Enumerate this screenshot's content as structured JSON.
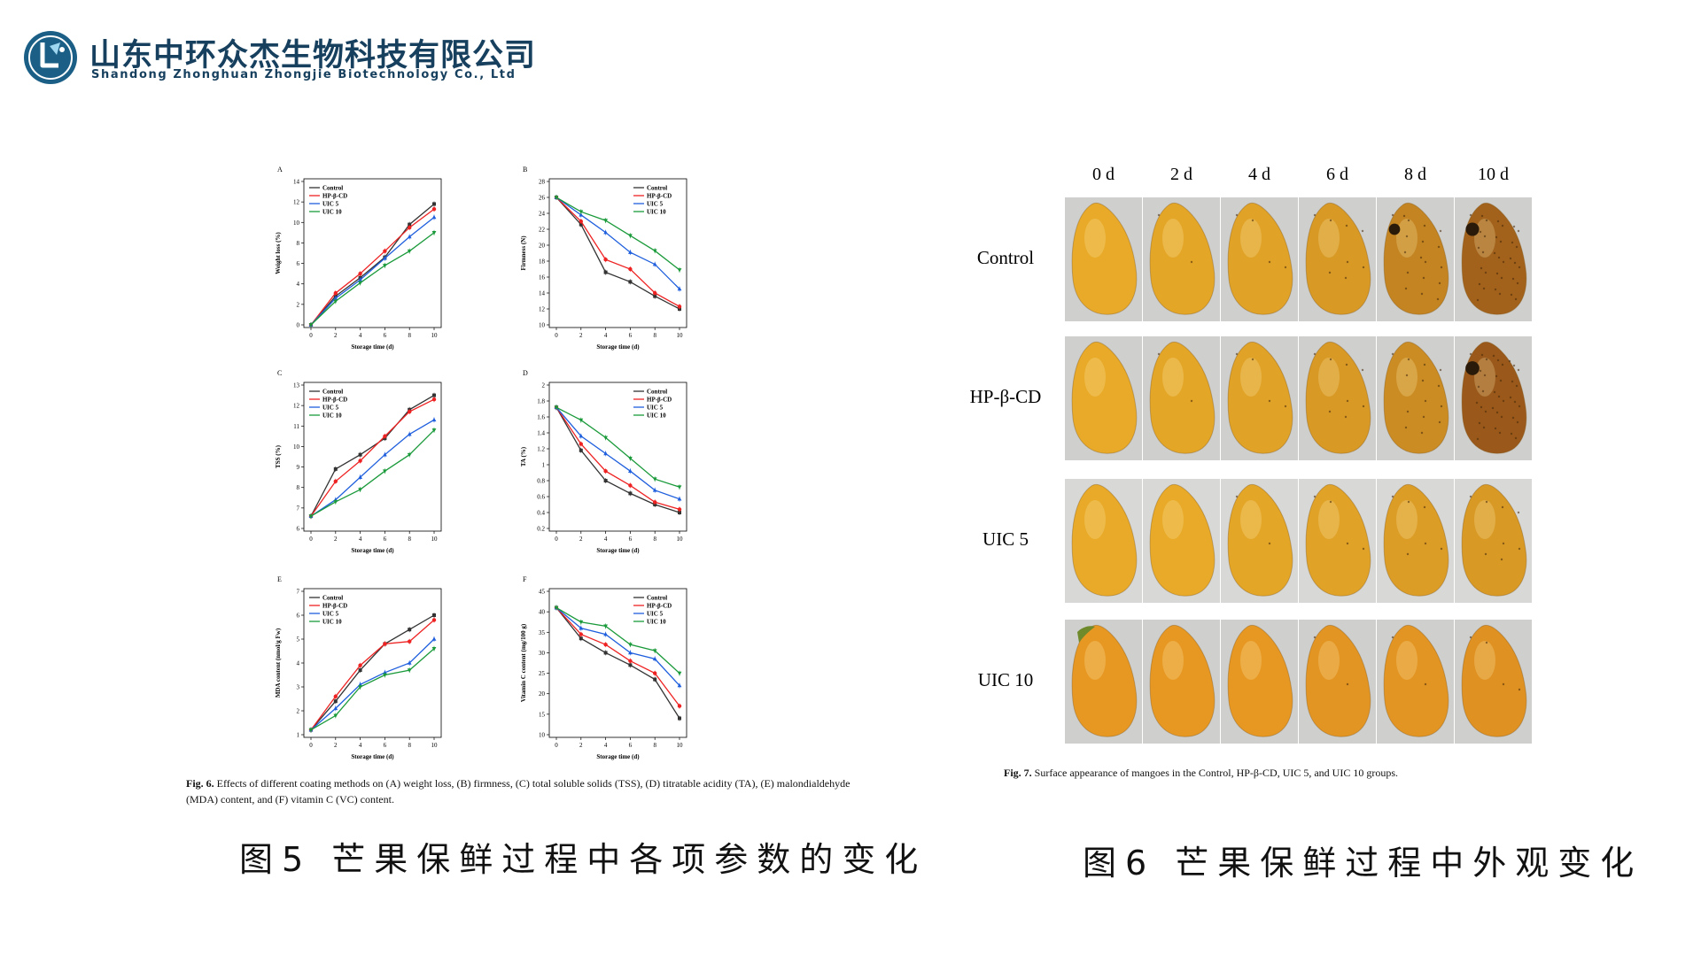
{
  "header": {
    "company_cn": "山东中环众杰生物科技有限公司",
    "company_en": "Shandong Zhonghuan Zhongjie Biotechnology Co., Ltd",
    "logo_icon": "flask-leaf-icon",
    "logo_color": "#1b5f86"
  },
  "colors": {
    "Control": "#333333",
    "HP-β-CD": "#ee2222",
    "UIC 5": "#1f5fdd",
    "UIC 10": "#1a9a3a"
  },
  "chart_data": [
    {
      "panel": "A",
      "type": "line",
      "xlabel": "Storage time (d)",
      "ylabel": "Weight loss (%)",
      "x": [
        0,
        2,
        4,
        6,
        8,
        10
      ],
      "ylim": [
        0,
        14
      ],
      "yticks": [
        0,
        2,
        4,
        6,
        8,
        10,
        12,
        14
      ],
      "legend": "top-left",
      "series": [
        {
          "name": "Control",
          "values": [
            0,
            2.8,
            4.6,
            6.6,
            9.8,
            11.8
          ]
        },
        {
          "name": "HP-β-CD",
          "values": [
            0,
            3.1,
            5.0,
            7.2,
            9.5,
            11.3
          ]
        },
        {
          "name": "UIC 5",
          "values": [
            0,
            2.6,
            4.4,
            6.5,
            8.6,
            10.5
          ]
        },
        {
          "name": "UIC 10",
          "values": [
            0,
            2.3,
            4.1,
            5.8,
            7.2,
            9.0
          ]
        }
      ]
    },
    {
      "panel": "B",
      "type": "line",
      "xlabel": "Storage time (d)",
      "ylabel": "Firmness (N)",
      "x": [
        0,
        2,
        4,
        6,
        8,
        10
      ],
      "ylim": [
        10,
        28
      ],
      "yticks": [
        10,
        12,
        14,
        16,
        18,
        20,
        22,
        24,
        26,
        28
      ],
      "legend": "top-right",
      "series": [
        {
          "name": "Control",
          "values": [
            26,
            22.6,
            16.6,
            15.4,
            13.6,
            12.0
          ]
        },
        {
          "name": "HP-β-CD",
          "values": [
            26,
            23.0,
            18.2,
            17.0,
            14.0,
            12.3
          ]
        },
        {
          "name": "UIC 5",
          "values": [
            26,
            23.8,
            21.6,
            19.1,
            17.6,
            14.5
          ]
        },
        {
          "name": "UIC 10",
          "values": [
            26,
            24.2,
            23.1,
            21.2,
            19.3,
            16.9
          ]
        }
      ]
    },
    {
      "panel": "C",
      "type": "line",
      "xlabel": "Storage time (d)",
      "ylabel": "TSS (%)",
      "x": [
        0,
        2,
        4,
        6,
        8,
        10
      ],
      "ylim": [
        6,
        13
      ],
      "yticks": [
        6,
        7,
        8,
        9,
        10,
        11,
        12,
        13
      ],
      "legend": "top-left",
      "series": [
        {
          "name": "Control",
          "values": [
            6.6,
            8.9,
            9.6,
            10.4,
            11.8,
            12.5
          ]
        },
        {
          "name": "HP-β-CD",
          "values": [
            6.6,
            8.3,
            9.3,
            10.5,
            11.7,
            12.3
          ]
        },
        {
          "name": "UIC 5",
          "values": [
            6.6,
            7.4,
            8.5,
            9.6,
            10.6,
            11.3
          ]
        },
        {
          "name": "UIC 10",
          "values": [
            6.6,
            7.3,
            7.9,
            8.8,
            9.6,
            10.8
          ]
        }
      ]
    },
    {
      "panel": "D",
      "type": "line",
      "xlabel": "Storage time (d)",
      "ylabel": "TA (%)",
      "x": [
        0,
        2,
        4,
        6,
        8,
        10
      ],
      "ylim": [
        0.2,
        2.0
      ],
      "yticks": [
        0.2,
        0.4,
        0.6,
        0.8,
        1.0,
        1.2,
        1.4,
        1.6,
        1.8,
        2.0
      ],
      "legend": "top-right",
      "series": [
        {
          "name": "Control",
          "values": [
            1.72,
            1.18,
            0.8,
            0.64,
            0.5,
            0.4
          ]
        },
        {
          "name": "HP-β-CD",
          "values": [
            1.72,
            1.26,
            0.92,
            0.74,
            0.53,
            0.44
          ]
        },
        {
          "name": "UIC 5",
          "values": [
            1.72,
            1.36,
            1.14,
            0.92,
            0.68,
            0.57
          ]
        },
        {
          "name": "UIC 10",
          "values": [
            1.72,
            1.56,
            1.34,
            1.08,
            0.82,
            0.72
          ]
        }
      ]
    },
    {
      "panel": "E",
      "type": "line",
      "xlabel": "Storage time (d)",
      "ylabel": "MDA content (nmol/g Fw)",
      "x": [
        0,
        2,
        4,
        6,
        8,
        10
      ],
      "ylim": [
        1,
        7
      ],
      "yticks": [
        1,
        2,
        3,
        4,
        5,
        6,
        7
      ],
      "legend": "top-left",
      "series": [
        {
          "name": "Control",
          "values": [
            1.2,
            2.4,
            3.7,
            4.8,
            5.4,
            6.0
          ]
        },
        {
          "name": "HP-β-CD",
          "values": [
            1.2,
            2.6,
            3.9,
            4.8,
            4.9,
            5.8
          ]
        },
        {
          "name": "UIC 5",
          "values": [
            1.2,
            2.1,
            3.1,
            3.6,
            4.0,
            5.0
          ]
        },
        {
          "name": "UIC 10",
          "values": [
            1.2,
            1.8,
            3.0,
            3.5,
            3.7,
            4.6
          ]
        }
      ]
    },
    {
      "panel": "F",
      "type": "line",
      "xlabel": "Storage time (d)",
      "ylabel": "Vitamin C content (mg/100 g)",
      "x": [
        0,
        2,
        4,
        6,
        8,
        10
      ],
      "ylim": [
        10,
        45
      ],
      "yticks": [
        10,
        15,
        20,
        25,
        30,
        35,
        40,
        45
      ],
      "legend": "top-right",
      "series": [
        {
          "name": "Control",
          "values": [
            41,
            33.5,
            30.0,
            27.0,
            23.5,
            14.0
          ]
        },
        {
          "name": "HP-β-CD",
          "values": [
            41,
            34.5,
            32.0,
            28.0,
            25.0,
            17.0
          ]
        },
        {
          "name": "UIC 5",
          "values": [
            41,
            36.0,
            34.5,
            30.0,
            28.5,
            22.0
          ]
        },
        {
          "name": "UIC 10",
          "values": [
            41,
            37.5,
            36.5,
            32.0,
            30.5,
            25.0
          ]
        }
      ]
    }
  ],
  "fig6_caption": {
    "label": "Fig. 6.",
    "text": "Effects of different coating methods on (A) weight loss, (B) firmness, (C) total soluble solids (TSS), (D) titratable acidity (TA), (E) malondialdehyde (MDA) content, and (F) vitamin C (VC) content."
  },
  "big_caption_left": "图5 芒果保鲜过程中各项参数的变化",
  "photos": {
    "days": [
      "0 d",
      "2 d",
      "4 d",
      "6 d",
      "8 d",
      "10 d"
    ],
    "groups": [
      {
        "name": "Control",
        "browning": [
          0,
          0.05,
          0.1,
          0.2,
          0.45,
          0.85
        ]
      },
      {
        "name": "HP-β-CD",
        "browning": [
          0,
          0.05,
          0.1,
          0.2,
          0.35,
          0.95
        ]
      },
      {
        "name": "UIC 5",
        "browning": [
          0,
          0,
          0.05,
          0.1,
          0.15,
          0.2
        ]
      },
      {
        "name": "UIC 10",
        "browning": [
          0,
          0,
          0,
          0.05,
          0.05,
          0.1
        ]
      }
    ]
  },
  "fig7_caption": {
    "label": "Fig. 7.",
    "text": "Surface appearance of mangoes in the Control, HP-β-CD, UIC 5, and UIC 10 groups."
  },
  "big_caption_right": "图6 芒果保鲜过程中外观变化"
}
